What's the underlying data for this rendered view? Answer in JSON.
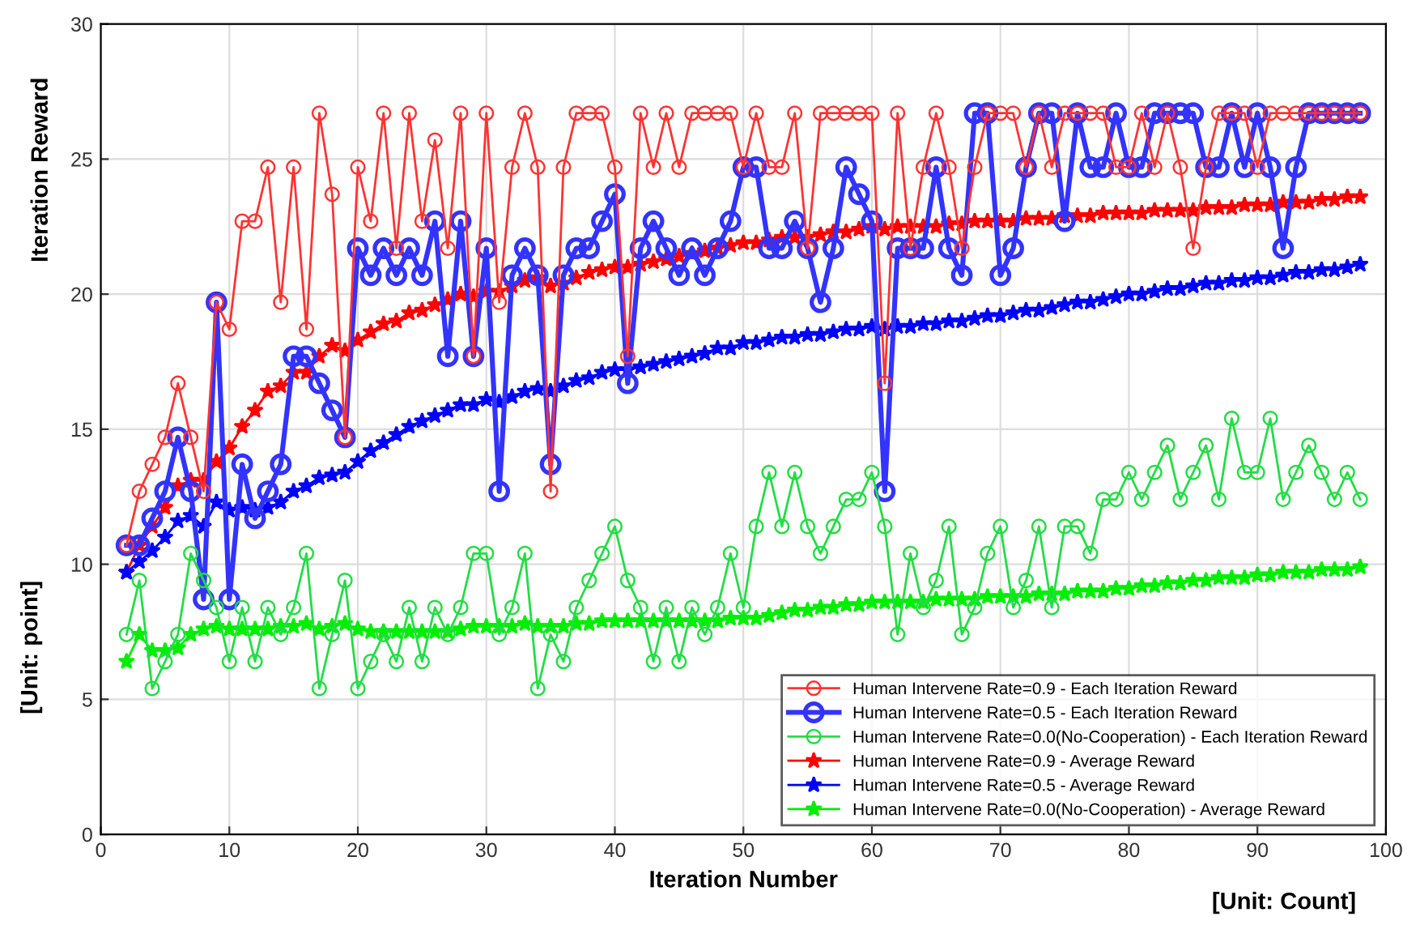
{
  "chart_data": {
    "type": "line",
    "xlabel": "Iteration Number",
    "ylabel": "Iteration Reward",
    "annotations": [
      "[Unit: point]",
      "[Unit: Count]"
    ],
    "x": [
      2,
      3,
      4,
      5,
      6,
      7,
      8,
      9,
      10,
      11,
      12,
      13,
      14,
      15,
      16,
      17,
      18,
      19,
      20,
      21,
      22,
      23,
      24,
      25,
      26,
      27,
      28,
      29,
      30,
      31,
      32,
      33,
      34,
      35,
      36,
      37,
      38,
      39,
      40,
      41,
      42,
      43,
      44,
      45,
      46,
      47,
      48,
      49,
      50,
      51,
      52,
      53,
      54,
      55,
      56,
      57,
      58,
      59,
      60,
      61,
      62,
      63,
      64,
      65,
      66,
      67,
      68,
      69,
      70,
      71,
      72,
      73,
      74,
      75,
      76,
      77,
      78,
      79,
      80,
      81,
      82,
      83,
      84,
      85,
      86,
      87,
      88,
      89,
      90,
      91,
      92,
      93,
      94,
      95,
      96,
      97,
      98
    ],
    "xlim": [
      0,
      100
    ],
    "xticks": [
      0,
      10,
      20,
      30,
      40,
      50,
      60,
      70,
      80,
      90,
      100
    ],
    "ylim": [
      0,
      30
    ],
    "yticks": [
      0,
      5,
      10,
      15,
      20,
      25,
      30
    ],
    "grid": true,
    "legend": "bottom right",
    "series": [
      {
        "name": "Human Intervene Rate=0.9 - Each Iteration Reward",
        "color": "#ff3333",
        "marker": "circle",
        "values": [
          10.7,
          12.7,
          13.7,
          14.7,
          16.7,
          14.7,
          12.7,
          19.7,
          18.7,
          22.7,
          22.7,
          24.7,
          19.7,
          24.7,
          18.7,
          26.7,
          23.7,
          14.7,
          24.7,
          22.7,
          26.7,
          21.7,
          26.7,
          22.7,
          25.7,
          21.7,
          26.7,
          17.7,
          26.7,
          19.7,
          24.7,
          26.7,
          24.7,
          12.7,
          24.7,
          26.7,
          26.7,
          26.7,
          24.7,
          17.7,
          26.7,
          24.7,
          26.7,
          24.7,
          26.7,
          26.7,
          26.7,
          26.7,
          24.7,
          26.7,
          24.7,
          24.7,
          26.7,
          21.7,
          26.7,
          26.7,
          26.7,
          26.7,
          26.7,
          16.7,
          26.7,
          21.7,
          24.7,
          26.7,
          24.7,
          21.7,
          24.7,
          26.7,
          26.7,
          26.7,
          24.7,
          26.7,
          24.7,
          26.7,
          26.7,
          26.7,
          26.7,
          24.7,
          24.7,
          26.7,
          24.7,
          26.7,
          24.7,
          21.7,
          24.7,
          26.7,
          26.7,
          26.7,
          24.7,
          26.7,
          26.7,
          26.7,
          26.7,
          26.7,
          26.7,
          26.7,
          26.7
        ]
      },
      {
        "name": "Human Intervene Rate=0.5 - Each Iteration Reward",
        "color": "#3333ff",
        "marker": "circle",
        "values": [
          10.7,
          10.7,
          11.7,
          12.7,
          14.7,
          12.7,
          8.7,
          19.7,
          8.7,
          13.7,
          11.7,
          12.7,
          13.7,
          17.7,
          17.7,
          16.7,
          15.7,
          14.7,
          21.7,
          20.7,
          21.7,
          20.7,
          21.7,
          20.7,
          22.7,
          17.7,
          22.7,
          17.7,
          21.7,
          12.7,
          20.7,
          21.7,
          20.7,
          13.7,
          20.7,
          21.7,
          21.7,
          22.7,
          23.7,
          16.7,
          21.7,
          22.7,
          21.7,
          20.7,
          21.7,
          20.7,
          21.7,
          22.7,
          24.7,
          24.7,
          21.7,
          21.7,
          22.7,
          21.7,
          19.7,
          21.7,
          24.7,
          23.7,
          22.7,
          12.7,
          21.7,
          21.7,
          21.7,
          24.7,
          21.7,
          20.7,
          26.7,
          26.7,
          20.7,
          21.7,
          24.7,
          26.7,
          26.7,
          22.7,
          26.7,
          24.7,
          24.7,
          26.7,
          24.7,
          24.7,
          26.7,
          26.7,
          26.7,
          26.7,
          24.7,
          24.7,
          26.7,
          24.7,
          26.7,
          24.7,
          21.7,
          24.7,
          26.7,
          26.7,
          26.7,
          26.7,
          26.7
        ]
      },
      {
        "name": "Human Intervene Rate=0.0(No-Cooperation) - Each Iteration Reward",
        "color": "#22dd44",
        "marker": "circle",
        "values": [
          7.4,
          9.4,
          5.4,
          6.4,
          7.4,
          10.4,
          9.4,
          8.4,
          6.4,
          8.4,
          6.4,
          8.4,
          7.4,
          8.4,
          10.4,
          5.4,
          7.4,
          9.4,
          5.4,
          6.4,
          7.4,
          6.4,
          8.4,
          6.4,
          8.4,
          7.4,
          8.4,
          10.4,
          10.4,
          7.4,
          8.4,
          10.4,
          5.4,
          7.4,
          6.4,
          8.4,
          9.4,
          10.4,
          11.4,
          9.4,
          8.4,
          6.4,
          8.4,
          6.4,
          8.4,
          7.4,
          8.4,
          10.4,
          8.4,
          11.4,
          13.4,
          11.4,
          13.4,
          11.4,
          10.4,
          11.4,
          12.4,
          12.4,
          13.4,
          11.4,
          7.4,
          10.4,
          8.4,
          9.4,
          11.4,
          7.4,
          8.4,
          10.4,
          11.4,
          8.4,
          9.4,
          11.4,
          8.4,
          11.4,
          11.4,
          10.4,
          12.4,
          12.4,
          13.4,
          12.4,
          13.4,
          14.4,
          12.4,
          13.4,
          14.4,
          12.4,
          15.4,
          13.4,
          13.4,
          15.4,
          12.4,
          13.4,
          14.4,
          13.4,
          12.4,
          13.4,
          12.4
        ]
      },
      {
        "name": "Human Intervene Rate=0.9 - Average Reward",
        "color": "#ff0000",
        "marker": "star",
        "values": [
          9.7,
          10.7,
          11.4,
          12.1,
          12.9,
          13.1,
          13.1,
          13.8,
          14.3,
          15.1,
          15.7,
          16.4,
          16.6,
          17.1,
          17.1,
          17.7,
          18.1,
          17.9,
          18.3,
          18.6,
          18.9,
          19.0,
          19.3,
          19.4,
          19.6,
          19.8,
          20.0,
          19.9,
          20.1,
          20.1,
          20.3,
          20.5,
          20.6,
          20.3,
          20.4,
          20.6,
          20.8,
          20.9,
          21.0,
          21.0,
          21.1,
          21.2,
          21.3,
          21.4,
          21.5,
          21.6,
          21.7,
          21.8,
          21.9,
          21.9,
          22.0,
          22.1,
          22.1,
          22.1,
          22.2,
          22.3,
          22.3,
          22.4,
          22.5,
          22.4,
          22.5,
          22.5,
          22.5,
          22.5,
          22.6,
          22.6,
          22.7,
          22.7,
          22.7,
          22.7,
          22.8,
          22.8,
          22.8,
          22.9,
          22.9,
          22.9,
          23.0,
          23.0,
          23.0,
          23.0,
          23.1,
          23.1,
          23.1,
          23.1,
          23.2,
          23.2,
          23.2,
          23.3,
          23.3,
          23.3,
          23.4,
          23.4,
          23.4,
          23.5,
          23.5,
          23.6,
          23.6
        ]
      },
      {
        "name": "Human Intervene Rate=0.5 - Average Reward",
        "color": "#0000ff",
        "marker": "star",
        "values": [
          9.7,
          10.1,
          10.5,
          11.0,
          11.6,
          11.8,
          11.4,
          12.3,
          12.0,
          12.1,
          12.0,
          12.1,
          12.3,
          12.7,
          12.9,
          13.2,
          13.3,
          13.4,
          13.8,
          14.2,
          14.5,
          14.8,
          15.1,
          15.3,
          15.5,
          15.7,
          15.9,
          15.9,
          16.1,
          16.0,
          16.2,
          16.4,
          16.5,
          16.4,
          16.6,
          16.8,
          16.9,
          17.1,
          17.2,
          17.2,
          17.3,
          17.4,
          17.5,
          17.6,
          17.7,
          17.8,
          18.0,
          18.0,
          18.2,
          18.2,
          18.3,
          18.4,
          18.4,
          18.5,
          18.5,
          18.6,
          18.7,
          18.7,
          18.8,
          18.7,
          18.8,
          18.8,
          18.9,
          18.9,
          19.0,
          19.0,
          19.1,
          19.2,
          19.2,
          19.3,
          19.4,
          19.4,
          19.5,
          19.6,
          19.7,
          19.7,
          19.8,
          19.9,
          20.0,
          20.0,
          20.1,
          20.2,
          20.2,
          20.3,
          20.4,
          20.4,
          20.5,
          20.5,
          20.6,
          20.6,
          20.7,
          20.8,
          20.8,
          20.9,
          20.9,
          21.0,
          21.1
        ]
      },
      {
        "name": "Human Intervene Rate=0.0(No-Cooperation) - Average Reward",
        "color": "#00ee00",
        "marker": "star",
        "values": [
          6.4,
          7.4,
          6.8,
          6.8,
          6.9,
          7.4,
          7.6,
          7.7,
          7.6,
          7.6,
          7.6,
          7.6,
          7.7,
          7.7,
          7.8,
          7.6,
          7.7,
          7.8,
          7.6,
          7.5,
          7.5,
          7.5,
          7.5,
          7.5,
          7.5,
          7.5,
          7.6,
          7.7,
          7.7,
          7.7,
          7.7,
          7.8,
          7.7,
          7.7,
          7.7,
          7.8,
          7.8,
          7.9,
          7.9,
          7.9,
          7.9,
          7.9,
          7.9,
          7.9,
          7.9,
          7.9,
          7.9,
          8.0,
          8.0,
          8.0,
          8.1,
          8.2,
          8.3,
          8.3,
          8.4,
          8.4,
          8.5,
          8.5,
          8.6,
          8.6,
          8.6,
          8.6,
          8.6,
          8.7,
          8.7,
          8.7,
          8.7,
          8.8,
          8.8,
          8.8,
          8.8,
          8.9,
          8.9,
          8.9,
          9.0,
          9.0,
          9.0,
          9.1,
          9.1,
          9.2,
          9.2,
          9.3,
          9.3,
          9.4,
          9.4,
          9.5,
          9.5,
          9.5,
          9.6,
          9.6,
          9.7,
          9.7,
          9.7,
          9.8,
          9.8,
          9.8,
          9.9
        ]
      }
    ]
  }
}
